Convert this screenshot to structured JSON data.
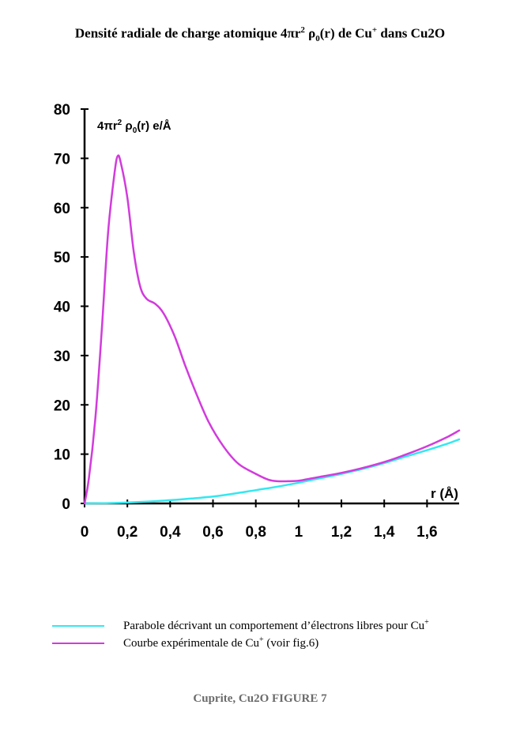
{
  "title": {
    "prefix": "Densité radiale de charge atomique 4πr",
    "sup2": "2",
    "rho": " ρ",
    "sub0": "0",
    "middle": "(r) de Cu",
    "supplus": "+",
    "suffix": " dans Cu2O"
  },
  "chart_data": {
    "type": "line",
    "xlim": [
      0,
      1.75
    ],
    "ylim": [
      0,
      80
    ],
    "x_ticks": [
      0,
      0.2,
      0.4,
      0.6,
      0.8,
      1,
      1.2,
      1.4,
      1.6
    ],
    "x_tick_labels": [
      "0",
      "0,2",
      "0,4",
      "0,6",
      "0,8",
      "1",
      "1,2",
      "1,4",
      "1,6"
    ],
    "y_ticks": [
      0,
      10,
      20,
      30,
      40,
      50,
      60,
      70,
      80
    ],
    "y_tick_labels": [
      "0",
      "10",
      "20",
      "30",
      "40",
      "50",
      "60",
      "70",
      "80"
    ],
    "xlabel": "r (Å)",
    "ylabel": {
      "prefix": "4πr",
      "sup": "2",
      "rho": " ρ",
      "sub": "0",
      "suffix": "(r) e/Å"
    },
    "grid": false,
    "legend_position": "bottom",
    "series": [
      {
        "name": "Parabole décrivant un comportement  d’électrons libres pour Cu+",
        "color": "#33e8f0",
        "x": [
          0,
          0.1,
          0.2,
          0.3,
          0.4,
          0.5,
          0.6,
          0.7,
          0.8,
          0.9,
          1.0,
          1.1,
          1.2,
          1.3,
          1.4,
          1.5,
          1.6,
          1.7,
          1.75
        ],
        "y": [
          0,
          0.05,
          0.18,
          0.38,
          0.65,
          1.0,
          1.4,
          2.0,
          2.7,
          3.4,
          4.2,
          5.1,
          6.0,
          7.0,
          8.2,
          9.5,
          10.8,
          12.2,
          13.0
        ]
      },
      {
        "name": "Courbe expérimentale de Cu+  (voir fig.6)",
        "color": "#d23bdc",
        "x": [
          0,
          0.02,
          0.05,
          0.08,
          0.11,
          0.14,
          0.155,
          0.17,
          0.2,
          0.23,
          0.26,
          0.29,
          0.33,
          0.37,
          0.42,
          0.47,
          0.52,
          0.58,
          0.65,
          0.72,
          0.8,
          0.86,
          0.9,
          0.95,
          1.0,
          1.05,
          1.1,
          1.2,
          1.3,
          1.4,
          1.5,
          1.6,
          1.7,
          1.75
        ],
        "y": [
          0,
          5,
          17,
          35,
          55,
          67,
          70.5,
          69,
          62,
          51,
          44,
          41.5,
          40.5,
          38.5,
          34,
          28,
          22.5,
          16.5,
          11.5,
          8,
          6,
          4.8,
          4.5,
          4.5,
          4.6,
          5.0,
          5.4,
          6.2,
          7.2,
          8.4,
          9.9,
          11.6,
          13.6,
          14.8
        ]
      }
    ]
  },
  "legend": {
    "items": [
      {
        "color": "#33e8f0",
        "text": "Parabole décrivant un comportement  d’électrons libres pour Cu",
        "sup": "+"
      },
      {
        "color": "#d23bdc",
        "text": "Courbe expérimentale de Cu",
        "sup": "+",
        "after": "  (voir fig.6)"
      }
    ]
  },
  "footer": "Cuprite, Cu2O FIGURE 7"
}
